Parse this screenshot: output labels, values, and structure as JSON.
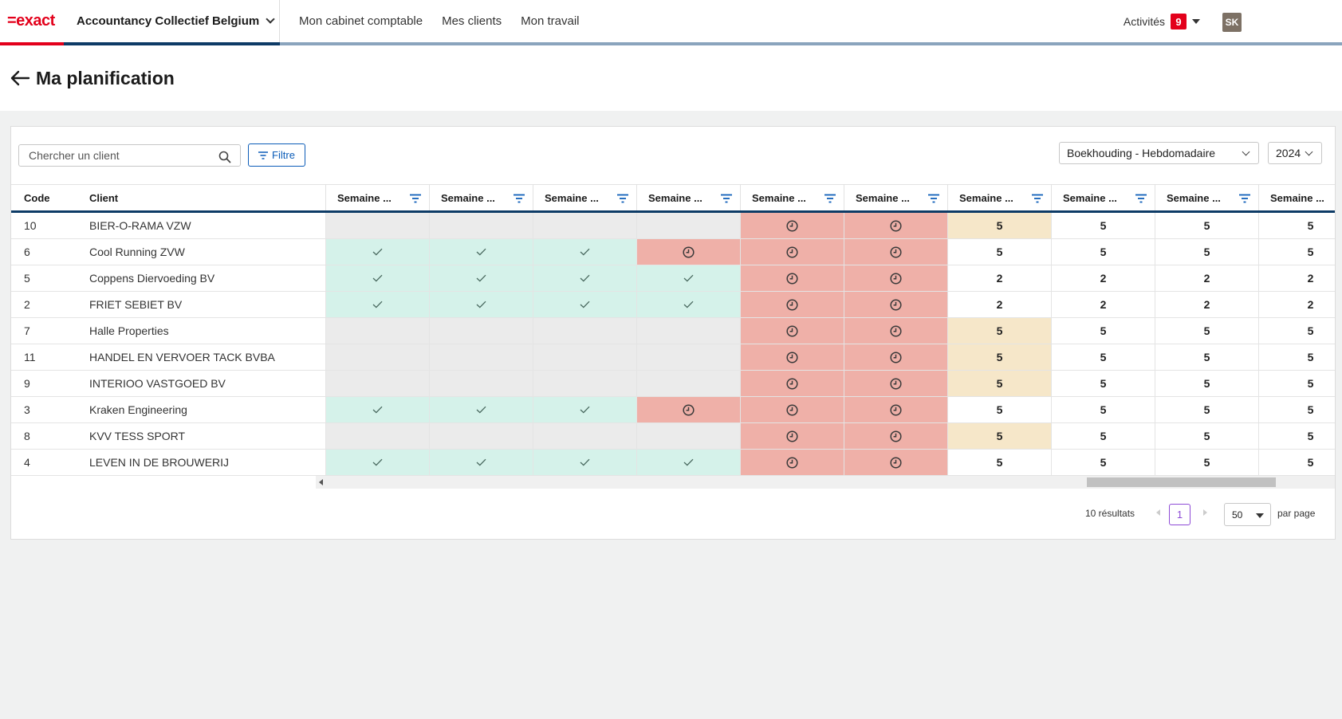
{
  "brand": {
    "logo": "=exact",
    "division": "Accountancy Collectief Belgium"
  },
  "nav": {
    "items": [
      "Mon cabinet comptable",
      "Mes clients",
      "Mon travail"
    ]
  },
  "user": {
    "activities_label": "Activités",
    "activities_count": "9",
    "initials": "SK"
  },
  "page": {
    "title": "Ma planification"
  },
  "toolbar": {
    "search_placeholder": "Chercher un client",
    "filter_label": "Filtre",
    "view_select": "Boekhouding - Hebdomadaire",
    "year_select": "2024"
  },
  "table": {
    "col_code": "Code",
    "col_client": "Client",
    "week_headers": [
      "Semaine ...",
      "Semaine ...",
      "Semaine ...",
      "Semaine ...",
      "Semaine ...",
      "Semaine ...",
      "Semaine ...",
      "Semaine ...",
      "Semaine ...",
      "Semaine ..."
    ],
    "rows": [
      {
        "code": "10",
        "client": "BIER-O-RAMA VZW",
        "cells": [
          "g",
          "g",
          "g",
          "g",
          "c",
          "c",
          "w:5",
          "n:5",
          "n:5",
          "n:5"
        ]
      },
      {
        "code": "6",
        "client": "Cool Running ZVW",
        "cells": [
          "d",
          "d",
          "d",
          "c",
          "c",
          "c",
          "n:5",
          "n:5",
          "n:5",
          "n:5"
        ]
      },
      {
        "code": "5",
        "client": "Coppens Diervoeding BV",
        "cells": [
          "d",
          "d",
          "d",
          "d",
          "c",
          "c",
          "n:2",
          "n:2",
          "n:2",
          "n:2"
        ]
      },
      {
        "code": "2",
        "client": "FRIET SEBIET BV",
        "cells": [
          "d",
          "d",
          "d",
          "d",
          "c",
          "c",
          "n:2",
          "n:2",
          "n:2",
          "n:2"
        ]
      },
      {
        "code": "7",
        "client": "Halle Properties",
        "cells": [
          "g",
          "g",
          "g",
          "g",
          "c",
          "c",
          "w:5",
          "n:5",
          "n:5",
          "n:5"
        ]
      },
      {
        "code": "11",
        "client": "HANDEL EN VERVOER TACK BVBA",
        "cells": [
          "g",
          "g",
          "g",
          "g",
          "c",
          "c",
          "w:5",
          "n:5",
          "n:5",
          "n:5"
        ]
      },
      {
        "code": "9",
        "client": "INTERIOO VASTGOED BV",
        "cells": [
          "g",
          "g",
          "g",
          "g",
          "c",
          "c",
          "w:5",
          "n:5",
          "n:5",
          "n:5"
        ]
      },
      {
        "code": "3",
        "client": "Kraken Engineering",
        "cells": [
          "d",
          "d",
          "d",
          "c",
          "c",
          "c",
          "n:5",
          "n:5",
          "n:5",
          "n:5"
        ]
      },
      {
        "code": "8",
        "client": "KVV TESS SPORT",
        "cells": [
          "g",
          "g",
          "g",
          "g",
          "c",
          "c",
          "w:5",
          "n:5",
          "n:5",
          "n:5"
        ]
      },
      {
        "code": "4",
        "client": "LEVEN IN DE BROUWERIJ",
        "cells": [
          "d",
          "d",
          "d",
          "d",
          "c",
          "c",
          "n:5",
          "n:5",
          "n:5",
          "n:5"
        ]
      }
    ]
  },
  "pagination": {
    "results": "10 résultats",
    "page": "1",
    "per_page": "50",
    "per_page_label": "par page"
  },
  "colors": {
    "accent": "#e3001b",
    "nav_blue": "#0d3b66",
    "done": "#d5f2ea",
    "late": "#efb0a8",
    "warn": "#f6e7c9",
    "empty": "#ebebeb"
  }
}
